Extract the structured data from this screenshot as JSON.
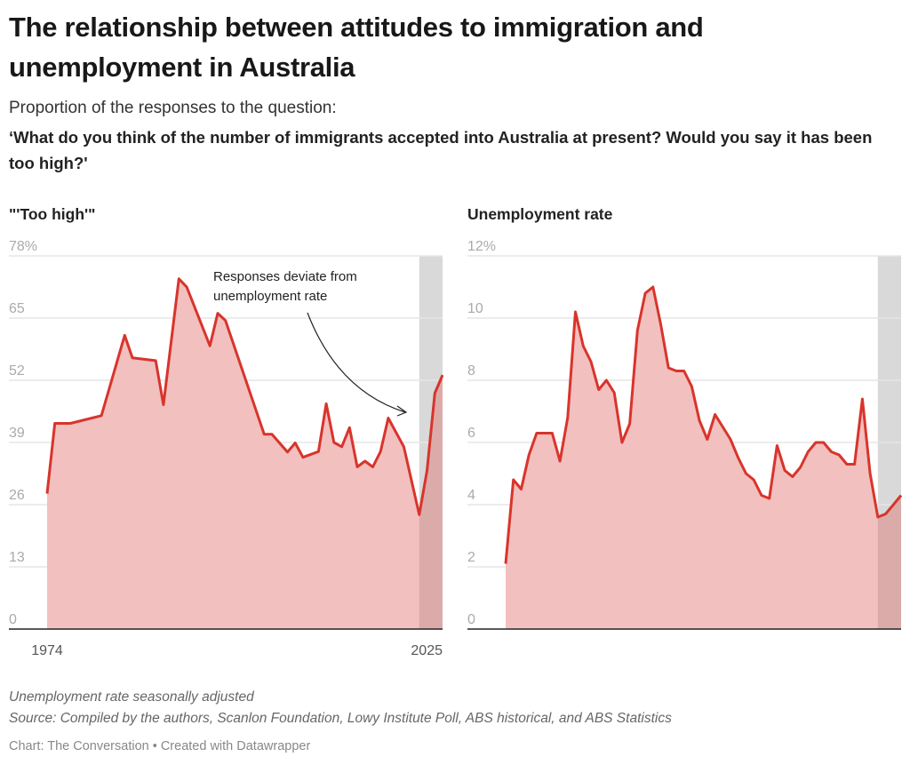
{
  "header": {
    "title": "The relationship between attitudes to immigration and unemployment in Australia",
    "subtitle_line1": "Proportion of the responses to the question:",
    "subtitle_line2": "‘What do you think of the number of immigrants accepted into Australia at present? Would you say it has been too high?'"
  },
  "footer": {
    "note": "Unemployment rate seasonally adjusted",
    "source": "Source: Compiled by the authors, Scanlon Foundation, Lowy Institute Poll, ABS historical, and ABS Statistics",
    "credit": "Chart: The Conversation • Created with Datawrapper"
  },
  "colors": {
    "line": "#d8342c",
    "fill": "#f2c0be",
    "highlight": "#d9d9d9",
    "baseline": "#222222",
    "grid": "#e6e6e6"
  },
  "chart_data": [
    {
      "type": "area",
      "title": "\"'Too high'\"",
      "ylim": [
        0,
        78
      ],
      "yticks": [
        "0",
        "13",
        "26",
        "39",
        "52",
        "65",
        "78%"
      ],
      "ytick_values": [
        0,
        13,
        26,
        39,
        52,
        65,
        78
      ],
      "xlim": [
        1974,
        2025
      ],
      "xticks": [
        "1974",
        "2025"
      ],
      "highlight_range": [
        2022,
        2025
      ],
      "grid": true,
      "annotation": "Responses deviate from unemployment rate",
      "annotation_lines": [
        "Responses deviate from",
        "unemployment rate"
      ],
      "x": [
        1974,
        1975,
        1977,
        1981,
        1984,
        1985,
        1988,
        1989,
        1991,
        1992,
        1995,
        1996,
        1997,
        2002,
        2003,
        2005,
        2006,
        2007,
        2009,
        2010,
        2011,
        2012,
        2013,
        2014,
        2015,
        2016,
        2017,
        2018,
        2020,
        2022,
        2023,
        2024,
        2025
      ],
      "y": [
        28.3,
        43.0,
        43.0,
        44.6,
        61.4,
        56.7,
        56.1,
        46.9,
        73.2,
        71.5,
        59.2,
        66.0,
        64.5,
        40.7,
        40.7,
        37.0,
        38.9,
        35.9,
        37.1,
        47.1,
        39.0,
        38.1,
        42.1,
        33.9,
        35.1,
        33.9,
        37.1,
        44.1,
        38.1,
        23.9,
        33.1,
        49.3,
        53.1
      ]
    },
    {
      "type": "area",
      "title": "Unemployment rate",
      "ylim": [
        0,
        12
      ],
      "yticks": [
        "0",
        "2",
        "4",
        "6",
        "8",
        "10",
        "12%"
      ],
      "ytick_values": [
        0,
        2,
        4,
        6,
        8,
        10,
        12
      ],
      "xlim": [
        1974,
        2025
      ],
      "highlight_range": [
        2022,
        2025
      ],
      "grid": true,
      "x": [
        1974,
        1975,
        1976,
        1977,
        1978,
        1979,
        1980,
        1981,
        1982,
        1983,
        1984,
        1985,
        1986,
        1987,
        1988,
        1989,
        1990,
        1991,
        1992,
        1993,
        1994,
        1995,
        1996,
        1997,
        1998,
        1999,
        2000,
        2001,
        2002,
        2003,
        2004,
        2005,
        2006,
        2007,
        2008,
        2009,
        2010,
        2011,
        2012,
        2013,
        2014,
        2015,
        2016,
        2017,
        2018,
        2019,
        2020,
        2021,
        2022,
        2023,
        2024,
        2025
      ],
      "y": [
        2.1,
        4.8,
        4.5,
        5.6,
        6.3,
        6.3,
        6.3,
        5.4,
        6.8,
        10.2,
        9.1,
        8.6,
        7.7,
        8.0,
        7.6,
        6.0,
        6.6,
        9.6,
        10.8,
        11.0,
        9.8,
        8.4,
        8.3,
        8.3,
        7.8,
        6.7,
        6.1,
        6.9,
        6.5,
        6.1,
        5.5,
        5.0,
        4.8,
        4.3,
        4.2,
        5.9,
        5.1,
        4.9,
        5.2,
        5.7,
        6.0,
        6.0,
        5.7,
        5.6,
        5.3,
        5.3,
        7.4,
        5.0,
        3.6,
        3.7,
        4.0,
        4.3
      ]
    }
  ]
}
